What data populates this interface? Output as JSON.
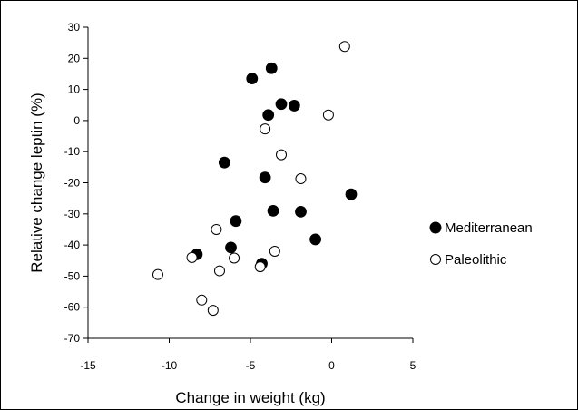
{
  "chart_data": {
    "type": "scatter",
    "title": "",
    "xlabel": "Change in weight (kg)",
    "ylabel": "Relative change leptin (%)",
    "xlim": [
      -15,
      5
    ],
    "ylim": [
      -70,
      30
    ],
    "x_ticks": [
      "-15",
      "-10",
      "-5",
      "0",
      "5"
    ],
    "y_ticks": [
      "30",
      "20",
      "10",
      "0",
      "-10",
      "-20",
      "-30",
      "-40",
      "-50",
      "-60",
      "-70"
    ],
    "grid": false,
    "legend_position": "right",
    "series": [
      {
        "name": "Mediterranean",
        "marker": "filled-circle",
        "color": "#000000",
        "points": [
          {
            "x": -4.9,
            "y": 13.5
          },
          {
            "x": -3.7,
            "y": 16.8
          },
          {
            "x": -3.9,
            "y": 1.8
          },
          {
            "x": -3.1,
            "y": 5.3
          },
          {
            "x": -2.3,
            "y": 4.8
          },
          {
            "x": -6.6,
            "y": -13.5
          },
          {
            "x": -4.1,
            "y": -18.3
          },
          {
            "x": 1.2,
            "y": -23.7
          },
          {
            "x": -5.9,
            "y": -32.3
          },
          {
            "x": -3.6,
            "y": -29.0
          },
          {
            "x": -1.9,
            "y": -29.3
          },
          {
            "x": -6.2,
            "y": -40.8
          },
          {
            "x": -1.0,
            "y": -38.2
          },
          {
            "x": -8.3,
            "y": -43.0
          },
          {
            "x": -4.3,
            "y": -46.0
          }
        ]
      },
      {
        "name": "Paleolithic",
        "marker": "open-circle",
        "color": "#000000",
        "points": [
          {
            "x": 0.8,
            "y": 23.8
          },
          {
            "x": -0.2,
            "y": 1.8
          },
          {
            "x": -4.1,
            "y": -2.7
          },
          {
            "x": -3.1,
            "y": -11.0
          },
          {
            "x": -1.9,
            "y": -18.7
          },
          {
            "x": -7.1,
            "y": -35.0
          },
          {
            "x": -3.5,
            "y": -42.0
          },
          {
            "x": -8.6,
            "y": -44.0
          },
          {
            "x": -6.0,
            "y": -44.2
          },
          {
            "x": -4.4,
            "y": -47.0
          },
          {
            "x": -6.9,
            "y": -48.3
          },
          {
            "x": -10.7,
            "y": -49.5
          },
          {
            "x": -8.0,
            "y": -57.7
          },
          {
            "x": -7.3,
            "y": -61.0
          }
        ]
      }
    ]
  }
}
